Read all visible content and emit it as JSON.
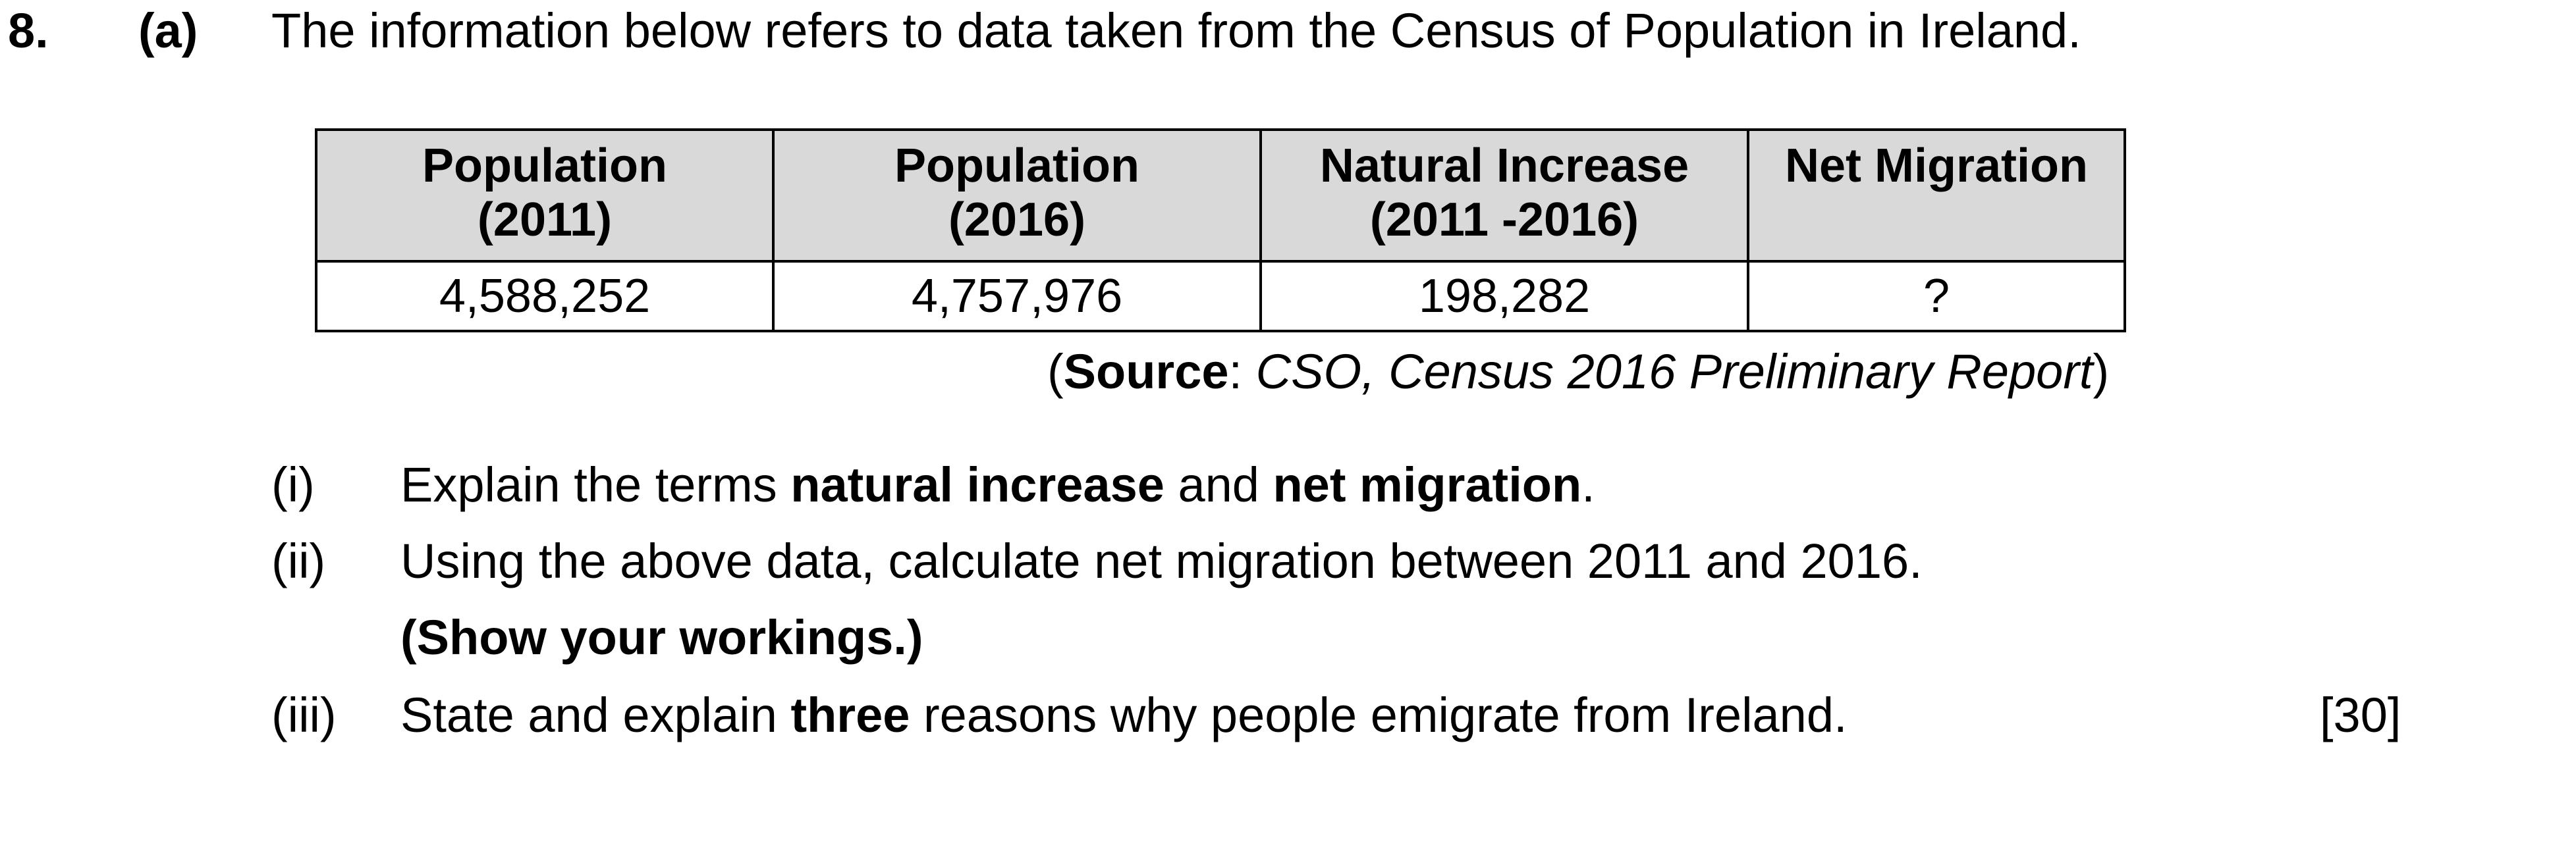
{
  "question": {
    "number": "8.",
    "part": "(a)",
    "intro": "The information below refers to data taken from the Census of Population in Ireland."
  },
  "table": {
    "headers": [
      {
        "line1": "Population",
        "line2": "(2011)"
      },
      {
        "line1": "Population",
        "line2": "(2016)"
      },
      {
        "line1": "Natural Increase",
        "line2": "(2011 -2016)"
      },
      {
        "line1": "Net Migration",
        "line2": ""
      }
    ],
    "row": [
      "4,588,252",
      "4,757,976",
      "198,282",
      "?"
    ]
  },
  "source": {
    "open_paren": "(",
    "label": "Source",
    "colon": ": ",
    "text": "CSO, Census 2016 Preliminary Report",
    "close_paren": ")"
  },
  "subquestions": {
    "i": {
      "label": "(i)",
      "pre": "Explain the terms ",
      "bold1": "natural increase",
      "mid": " and ",
      "bold2": "net migration",
      "post": "."
    },
    "ii": {
      "label": "(ii)",
      "text": "Using the above data, calculate net migration between 2011 and 2016.",
      "note": "(Show your workings.)"
    },
    "iii": {
      "label": "(iii)",
      "pre": "State and explain ",
      "bold": "three",
      "post": " reasons why people emigrate from Ireland."
    }
  },
  "marks": "[30]"
}
